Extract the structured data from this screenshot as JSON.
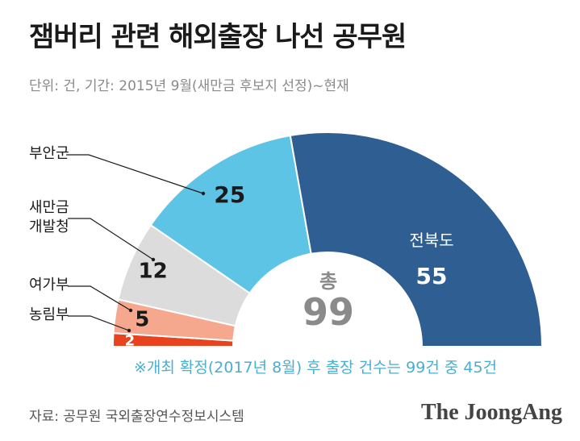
{
  "title": "잼버리 관련 해외출장 나선 공무원",
  "subtitle": "단위: 건, 기간: 2015년 9월(새만금 후보지 선정)~현재",
  "chart_data": {
    "type": "pie",
    "variant": "half-donut",
    "unit": "건",
    "slices": [
      {
        "label": "농림부",
        "value": 2,
        "color": "#e8431e"
      },
      {
        "label": "여가부",
        "value": 5,
        "color": "#f6a88e"
      },
      {
        "label": "새만금\n개발청",
        "value": 12,
        "color": "#dcdcdc"
      },
      {
        "label": "부안군",
        "value": 25,
        "color": "#5ec4e6"
      },
      {
        "label": "전북도",
        "value": 55,
        "color": "#2f5e93"
      }
    ],
    "total_label": "총",
    "total_value": 99
  },
  "footnote": "※개최 확정(2017년 8월) 후 출장 건수는 99건 중 45건",
  "source": "자료: 공무원 국외출장연수정보시스템",
  "brand": "The JoongAng"
}
